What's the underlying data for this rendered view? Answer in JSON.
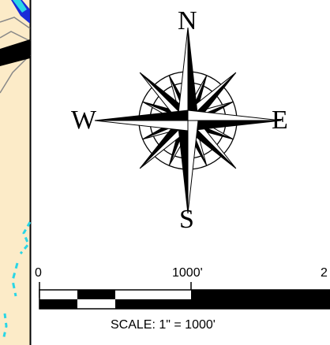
{
  "compass": {
    "north": "N",
    "south": "S",
    "east": "E",
    "west": "W"
  },
  "scale_bar": {
    "ticks": [
      "0",
      "1000'",
      "2"
    ],
    "caption": "SCALE: 1\" = 1000'"
  },
  "colors": {
    "map_background": "#fcebc8",
    "map_line": "#000000",
    "water": "#2ad6e6",
    "water_dark": "#1a2bd8"
  }
}
